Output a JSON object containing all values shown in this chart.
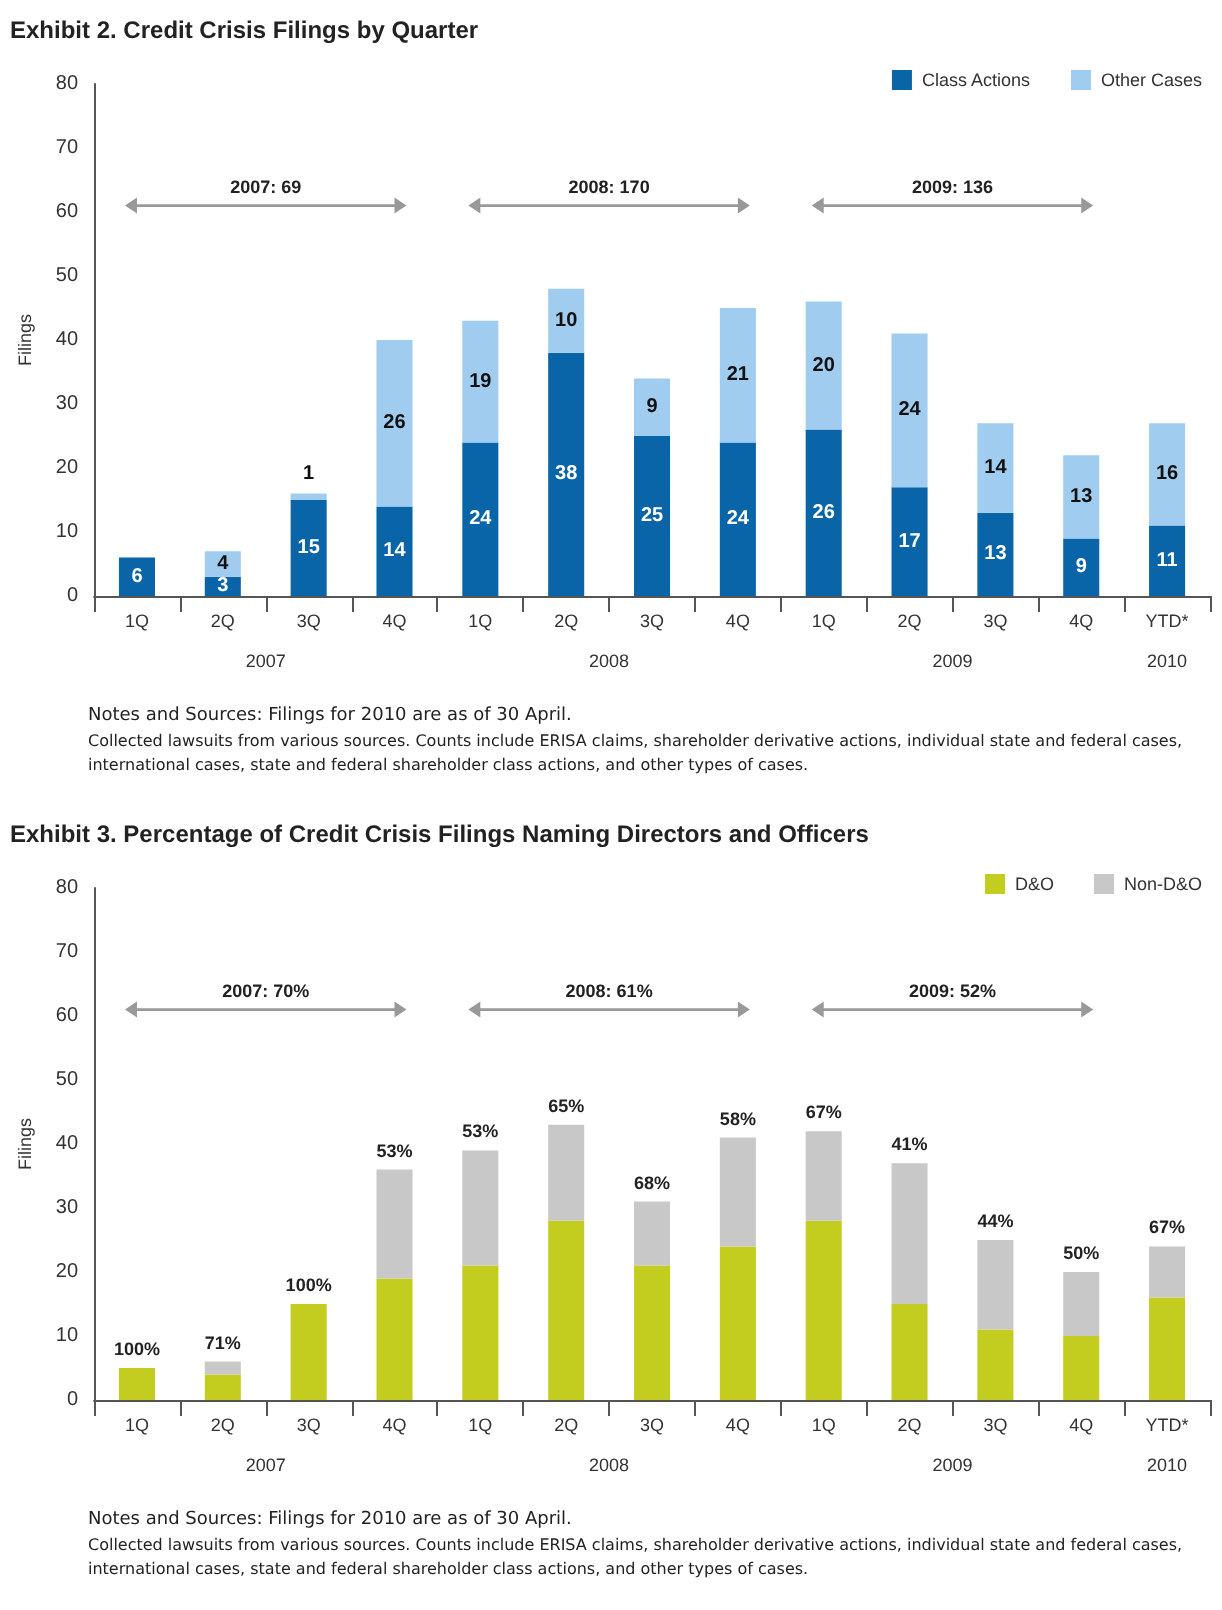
{
  "chart_data": [
    {
      "type": "bar",
      "title": "Exhibit 2. Credit Crisis Filings by Quarter",
      "ylabel": "Filings",
      "categories": [
        "1Q",
        "2Q",
        "3Q",
        "4Q",
        "1Q",
        "2Q",
        "3Q",
        "4Q",
        "1Q",
        "2Q",
        "3Q",
        "4Q",
        "YTD*"
      ],
      "series": [
        {
          "name": "Class Actions",
          "color": "#0a64a8",
          "values": [
            6,
            3,
            15,
            14,
            24,
            38,
            25,
            24,
            26,
            17,
            13,
            9,
            11
          ]
        },
        {
          "name": "Other Cases",
          "color": "#a0cdef",
          "values": [
            null,
            4,
            1,
            26,
            19,
            10,
            9,
            21,
            20,
            24,
            14,
            13,
            16
          ]
        }
      ],
      "stacked": true,
      "data_labels": true,
      "ylim": [
        0,
        80
      ],
      "yticks": [
        0,
        10,
        20,
        30,
        40,
        50,
        60,
        70,
        80
      ],
      "legend": "top right",
      "annotations": [
        "2007: 69",
        "2008: 170",
        "2009: 136",
        "2007",
        "2008",
        "2009",
        "2010",
        "Notes and Sources: Filings for 2010 are as of 30 April.",
        "Collected lawsuits from various sources. Counts include ERISA claims, shareholder derivative actions, individual state and federal cases, international cases, state and federal shareholder class actions, and other types of cases."
      ]
    },
    {
      "type": "bar",
      "title": "Exhibit 3. Percentage of Credit Crisis Filings Naming Directors and Officers",
      "ylabel": "Filings",
      "categories": [
        "1Q",
        "2Q",
        "3Q",
        "4Q",
        "1Q",
        "2Q",
        "3Q",
        "4Q",
        "1Q",
        "2Q",
        "3Q",
        "4Q",
        "YTD*"
      ],
      "series": [
        {
          "name": "D&O",
          "color": "#c3cd1f",
          "values": [
            5,
            4,
            15,
            19,
            21,
            28,
            21,
            24,
            28,
            15,
            11,
            10,
            16
          ]
        },
        {
          "name": "Non-D&O",
          "color": "#c8c8c8",
          "values": [
            null,
            2,
            null,
            17,
            18,
            15,
            10,
            17,
            14,
            22,
            14,
            10,
            8
          ]
        }
      ],
      "stacked": true,
      "ylim": [
        0,
        80
      ],
      "yticks": [
        0,
        10,
        20,
        30,
        40,
        50,
        60,
        70,
        80
      ],
      "legend": "top right",
      "annotations": [
        "2007: 70%",
        "2008: 61%",
        "2009: 52%",
        "2007",
        "2008",
        "2009",
        "2010",
        "Notes and Sources: Filings for 2010 are as of 30 April.",
        "Collected lawsuits from various sources. Counts include ERISA claims, shareholder derivative actions, individual state and federal cases, international cases, state and federal shareholder class actions, and other types of cases.",
        "100%",
        "71%",
        "100%",
        "53%",
        "53%",
        "65%",
        "68%",
        "58%",
        "67%",
        "41%",
        "44%",
        "50%",
        "67%"
      ]
    }
  ]
}
